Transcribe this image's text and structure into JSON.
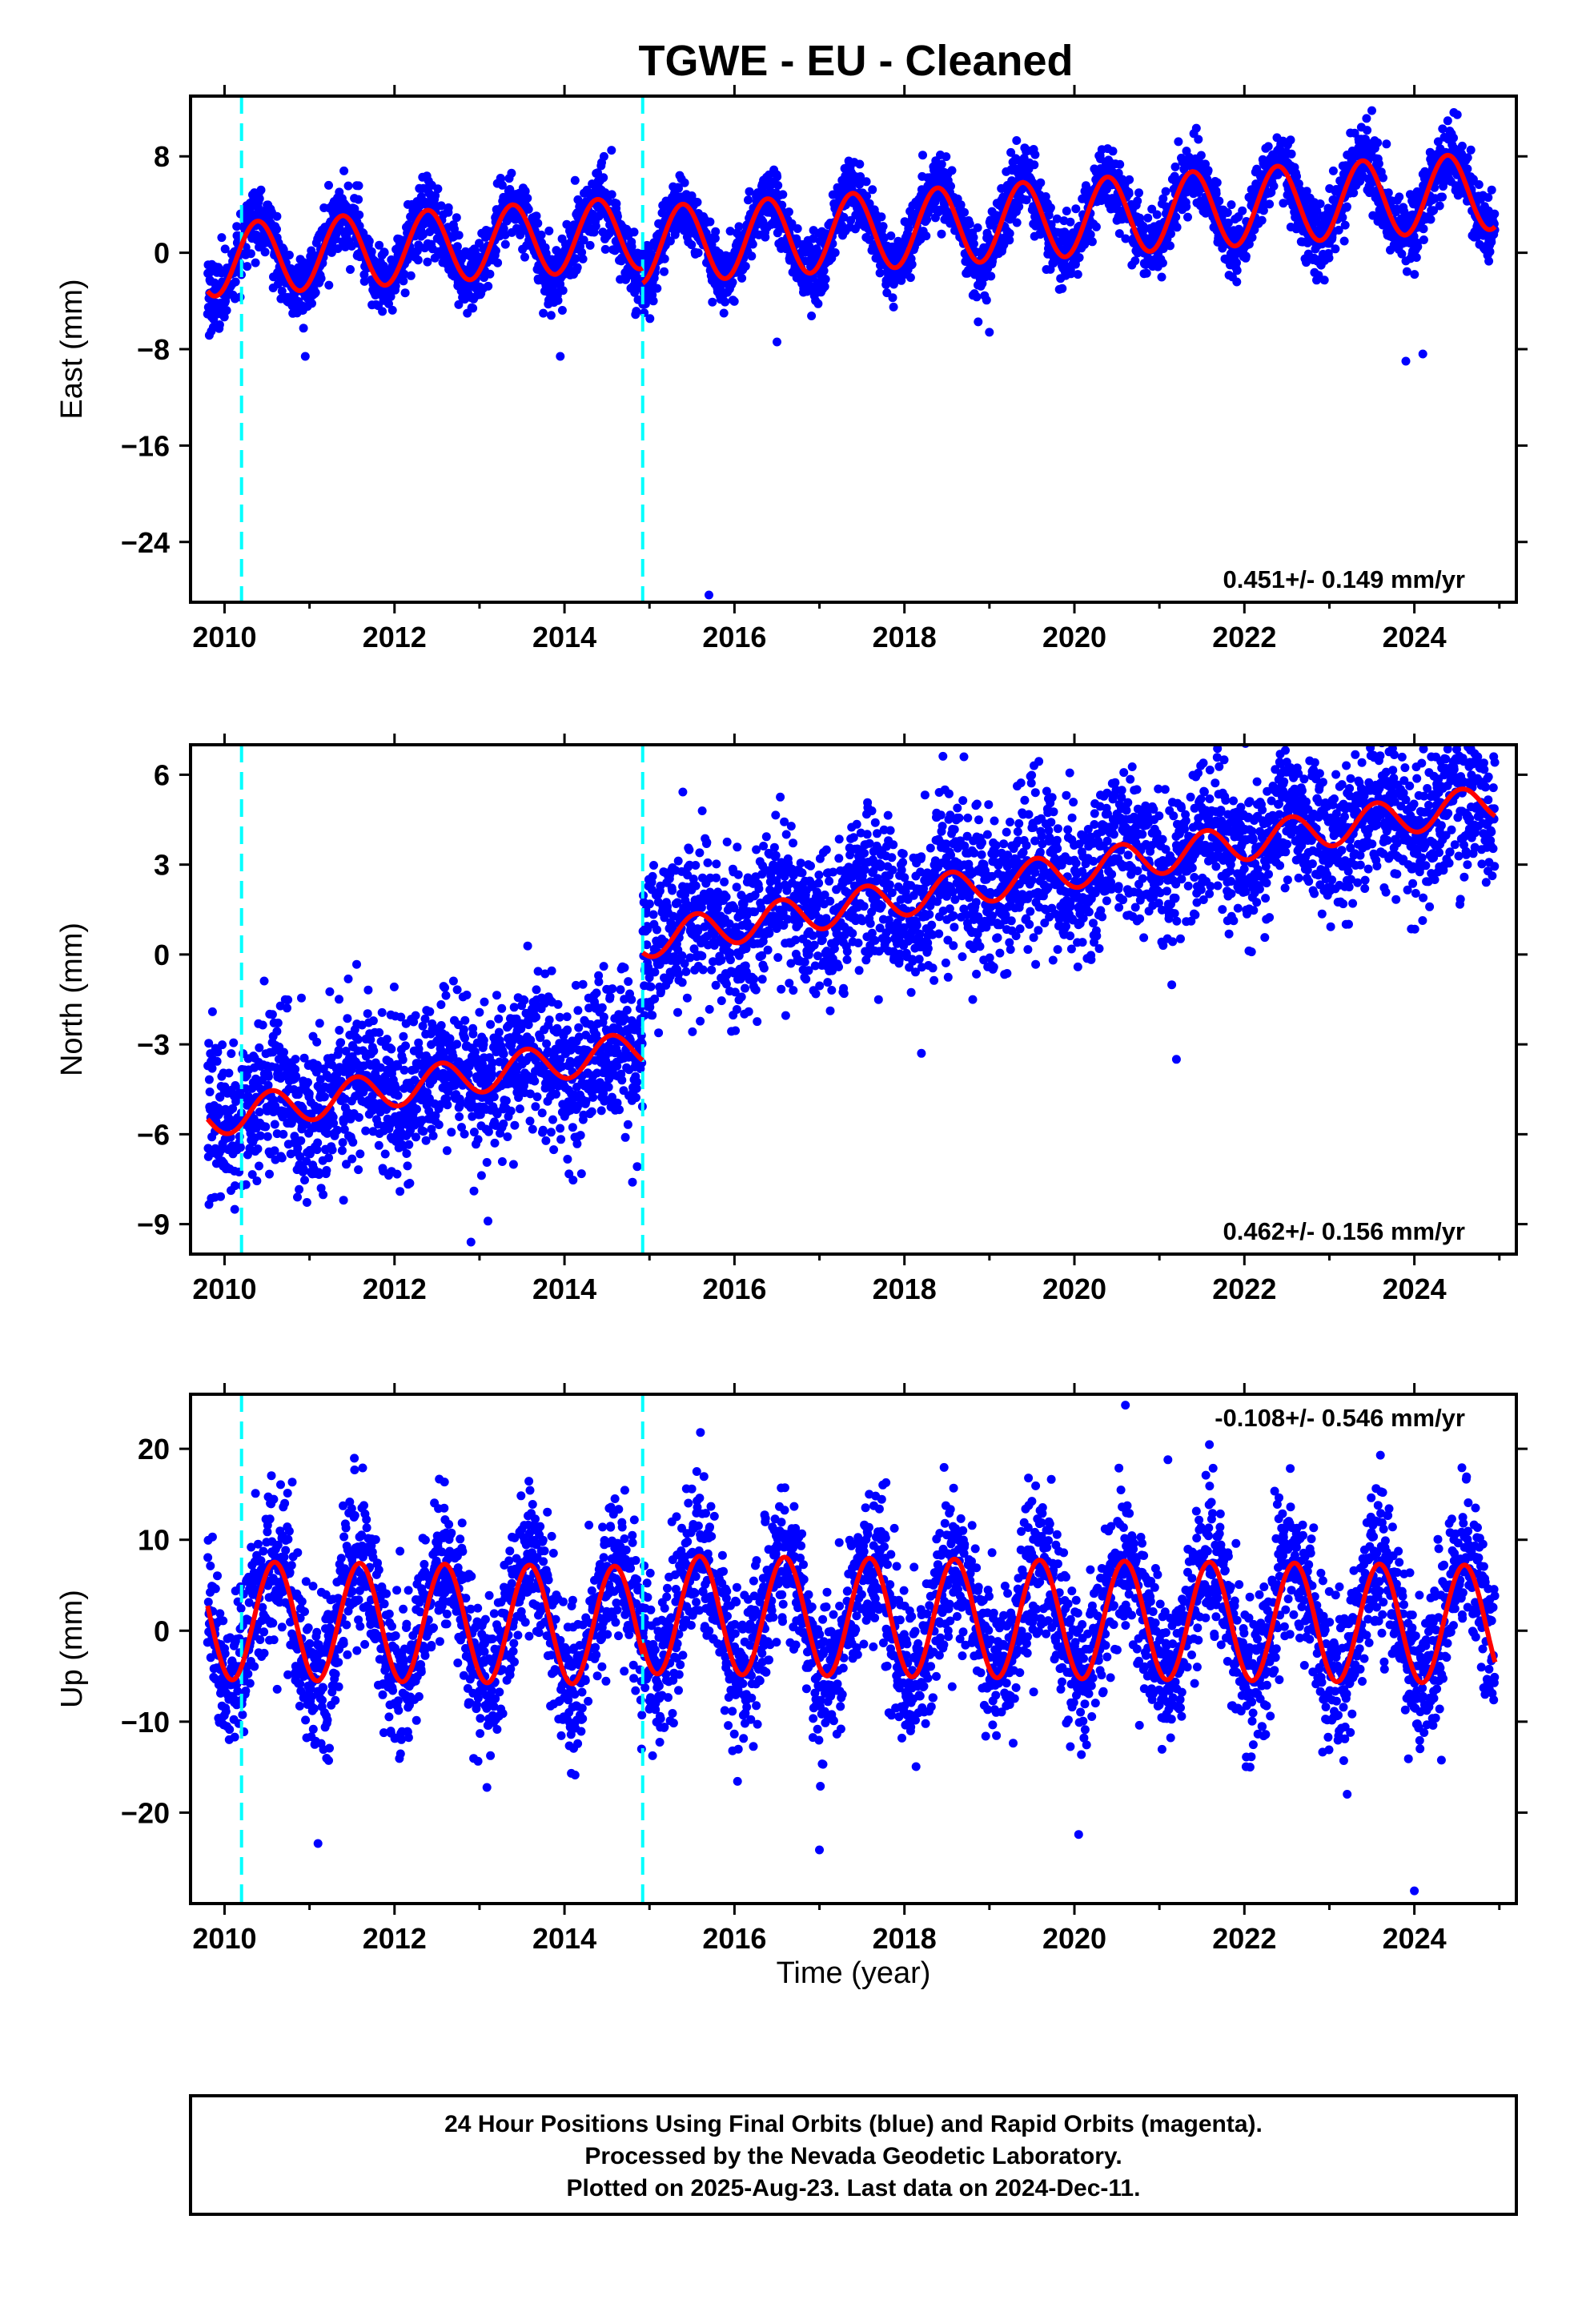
{
  "title": "TGWE  - EU - Cleaned",
  "colors": {
    "final_orbits": "#0000ff",
    "model_fit": "#ff0000",
    "steps": "#00ffff",
    "frame": "#000000"
  },
  "xlabel": "Time (year)",
  "footer": {
    "line1": "24 Hour Positions Using Final Orbits (blue) and Rapid Orbits (magenta).",
    "line2": "Processed by the Nevada Geodetic Laboratory.",
    "line3": "Plotted on 2025-Aug-23. Last data on 2024-Dec-11."
  },
  "chart_data": [
    {
      "type": "scatter",
      "component": "east",
      "ylabel": "East (mm)",
      "rate_text": "0.451+/- 0.149 mm/yr",
      "xlim": [
        2009.6,
        2025.2
      ],
      "ylim": [
        -29,
        13
      ],
      "xticks": [
        2010,
        2012,
        2014,
        2016,
        2018,
        2020,
        2022,
        2024
      ],
      "yticks": [
        8,
        0,
        -8,
        -16,
        -24
      ],
      "grid": false,
      "step_epochs": [
        2010.2,
        2014.92
      ],
      "data_span": [
        2009.8,
        2024.95
      ],
      "model": {
        "segments": [
          {
            "start": 2009.8,
            "end": 2014.92,
            "offset": -0.55,
            "trend": 0.451,
            "amp": 3.0,
            "phase": 0.14
          },
          {
            "start": 2014.92,
            "end": 2024.95,
            "offset": -1.6,
            "trend": 0.451,
            "amp": 3.2,
            "phase": 0.14
          }
        ]
      },
      "scatter_sigma": 1.4,
      "outliers": [
        {
          "x": 2010.95,
          "y": -8.6
        },
        {
          "x": 2013.95,
          "y": -8.6
        },
        {
          "x": 2015.7,
          "y": -28.4
        },
        {
          "x": 2023.5,
          "y": 11.8
        },
        {
          "x": 2023.9,
          "y": -9.0
        },
        {
          "x": 2024.1,
          "y": -8.4
        },
        {
          "x": 2016.5,
          "y": -7.4
        },
        {
          "x": 2019.0,
          "y": -6.6
        }
      ]
    },
    {
      "type": "scatter",
      "component": "north",
      "ylabel": "North (mm)",
      "rate_text": "0.462+/- 0.156 mm/yr",
      "xlim": [
        2009.6,
        2025.2
      ],
      "ylim": [
        -10,
        7
      ],
      "xticks": [
        2010,
        2012,
        2014,
        2016,
        2018,
        2020,
        2022,
        2024
      ],
      "yticks": [
        6,
        3,
        0,
        -3,
        -6,
        -9
      ],
      "grid": false,
      "step_epochs": [
        2010.2,
        2014.92
      ],
      "data_span": [
        2009.8,
        2024.95
      ],
      "model": {
        "segments": [
          {
            "start": 2009.8,
            "end": 2014.92,
            "offset": -5.4,
            "trend": 0.462,
            "amp": 0.6,
            "phase": 0.3
          },
          {
            "start": 2014.92,
            "end": 2024.95,
            "offset": -1.8,
            "trend": 0.462,
            "amp": 0.6,
            "phase": 0.3
          }
        ]
      },
      "scatter_sigma": 1.25,
      "outliers": [
        {
          "x": 2012.9,
          "y": -9.6
        },
        {
          "x": 2013.1,
          "y": -8.9
        },
        {
          "x": 2014.8,
          "y": -7.6
        },
        {
          "x": 2018.7,
          "y": 6.6
        },
        {
          "x": 2024.2,
          "y": 6.6
        },
        {
          "x": 2021.2,
          "y": -3.5
        },
        {
          "x": 2018.2,
          "y": -3.3
        },
        {
          "x": 2011.4,
          "y": -8.2
        }
      ]
    },
    {
      "type": "scatter",
      "component": "up",
      "ylabel": "Up (mm)",
      "rate_text": "-0.108+/- 0.546 mm/yr",
      "xlim": [
        2009.6,
        2025.2
      ],
      "ylim": [
        -30,
        26
      ],
      "xticks": [
        2010,
        2012,
        2014,
        2016,
        2018,
        2020,
        2022,
        2024
      ],
      "yticks": [
        20,
        10,
        0,
        -10,
        -20
      ],
      "grid": false,
      "step_epochs": [
        2010.2,
        2014.92
      ],
      "data_span": [
        2009.8,
        2024.95
      ],
      "model": {
        "segments": [
          {
            "start": 2009.8,
            "end": 2014.92,
            "offset": 1.1,
            "trend": -0.108,
            "amp": 6.5,
            "phase": 0.34
          },
          {
            "start": 2014.92,
            "end": 2024.95,
            "offset": 2.3,
            "trend": -0.108,
            "amp": 6.5,
            "phase": 0.34
          }
        ]
      },
      "scatter_sigma": 4.2,
      "outliers": [
        {
          "x": 2020.6,
          "y": 24.8
        },
        {
          "x": 2015.6,
          "y": 21.8
        },
        {
          "x": 2024.0,
          "y": -28.6
        },
        {
          "x": 2011.1,
          "y": -23.4
        },
        {
          "x": 2017.0,
          "y": -24.1
        },
        {
          "x": 2020.05,
          "y": -22.4
        },
        {
          "x": 2023.6,
          "y": 19.3
        },
        {
          "x": 2021.1,
          "y": 18.8
        }
      ]
    }
  ]
}
